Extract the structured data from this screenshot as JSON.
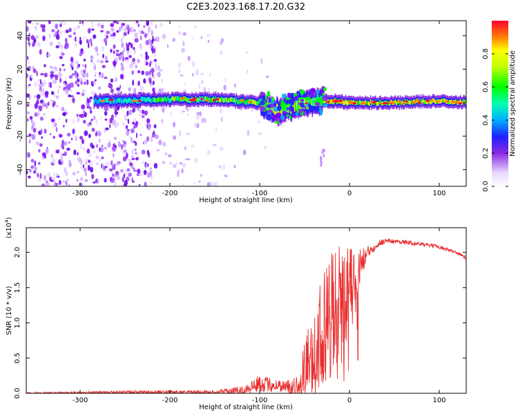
{
  "title": "C2E3.2023.168.17.20.G32",
  "chart_data": [
    {
      "type": "heatmap",
      "xlabel": "Height of straight line (km)",
      "ylabel": "Frequency (Hz)",
      "xlim": [
        -360,
        130
      ],
      "ylim": [
        -50,
        49
      ],
      "xticks": [
        -300,
        -200,
        -100,
        0,
        100
      ],
      "yticks": [
        -40,
        -20,
        0,
        20,
        40
      ],
      "colorbar": {
        "label": "Normalized spectral amplitude",
        "range": [
          0.0,
          1.0
        ],
        "ticks": [
          0.0,
          0.2,
          0.4,
          0.6,
          0.8
        ],
        "colormap": "rainbow (white-purple-blue-cyan-green-yellow-red)"
      },
      "features": {
        "band_center_hz": [
          [
            -270,
            1
          ],
          [
            -200,
            2
          ],
          [
            -150,
            2
          ],
          [
            -100,
            0
          ],
          [
            -80,
            -5
          ],
          [
            -50,
            0
          ],
          [
            -20,
            1
          ],
          [
            0,
            0
          ],
          [
            50,
            0
          ],
          [
            100,
            1
          ],
          [
            130,
            0
          ]
        ],
        "noise_region_x": [
          -360,
          -215
        ],
        "peak_amplitude_region_x": [
          -20,
          130
        ]
      }
    },
    {
      "type": "line",
      "xlabel": "Height of straight line (km)",
      "ylabel": "SNR (10 * v/v)",
      "y_scale_label": "(x10^4)",
      "xlim": [
        -360,
        130
      ],
      "ylim": [
        0,
        2.35
      ],
      "xticks": [
        -300,
        -200,
        -100,
        0,
        100
      ],
      "yticks": [
        0.0,
        0.5,
        1.0,
        1.5,
        2.0
      ],
      "series": [
        {
          "color": "#e83030",
          "envelope": {
            "x": [
              -360,
              -300,
              -250,
              -200,
              -150,
              -120,
              -100,
              -80,
              -60,
              -40,
              -30,
              -20,
              -10,
              0,
              10,
              20,
              30,
              40,
              60,
              80,
              100,
              120,
              130
            ],
            "y": [
              0.0,
              0.01,
              0.02,
              0.02,
              0.02,
              0.05,
              0.15,
              0.12,
              0.1,
              0.6,
              1.0,
              1.2,
              1.4,
              1.55,
              1.8,
              2.0,
              2.12,
              2.17,
              2.15,
              2.12,
              2.08,
              2.0,
              1.92
            ]
          },
          "noise_amplitude": {
            "x": [
              -360,
              -150,
              -120,
              -100,
              -70,
              -50,
              -40,
              -30,
              -20,
              -10,
              0,
              10,
              20,
              40,
              130
            ],
            "y": [
              0.02,
              0.03,
              0.08,
              0.15,
              0.1,
              0.5,
              0.9,
              1.0,
              1.1,
              1.0,
              0.7,
              0.35,
              0.12,
              0.04,
              0.03
            ]
          }
        }
      ]
    }
  ]
}
